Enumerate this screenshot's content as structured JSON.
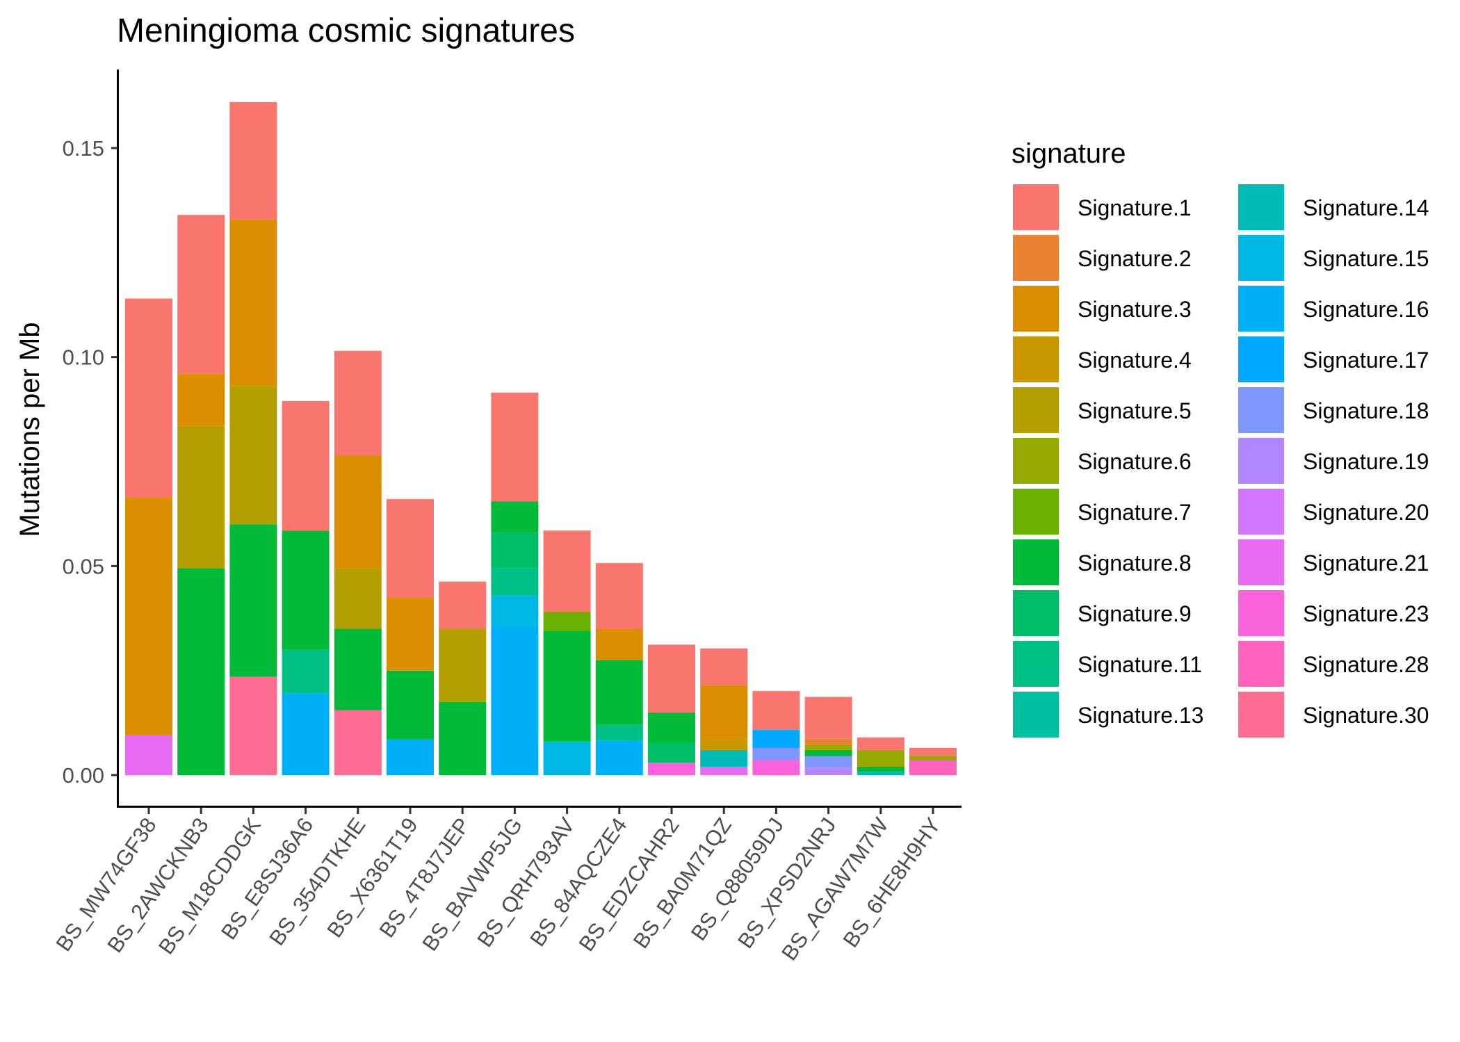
{
  "chart_data": {
    "type": "bar",
    "stacked": true,
    "title": "Meningioma cosmic signatures",
    "xlabel": "",
    "ylabel": "Mutations per Mb",
    "ylim": [
      -0.008,
      0.169
    ],
    "yticks": [
      0.0,
      0.05,
      0.1,
      0.15
    ],
    "ytick_labels": [
      "0.00",
      "0.05",
      "0.10",
      "0.15"
    ],
    "grid": false,
    "legend_position": "right",
    "legend_title": "signature",
    "categories": [
      "BS_MW74GF38",
      "BS_2AWCKNB3",
      "BS_M18CDDGK",
      "BS_E8SJ36A6",
      "BS_354DTKHE",
      "BS_X6361T19",
      "BS_4T8J7JEP",
      "BS_BAVWP5JG",
      "BS_QRH793AV",
      "BS_84AQCZE4",
      "BS_EDZCAHR2",
      "BS_BA0M71QZ",
      "BS_Q88059DJ",
      "BS_XPSD2NRJ",
      "BS_AGAW7M7W",
      "BS_6HE8H9HY"
    ],
    "series": [
      {
        "name": "Signature.1",
        "color": "#F8766D",
        "values": [
          0.0475,
          0.038,
          0.028,
          0.031,
          0.025,
          0.0235,
          0.0113,
          0.026,
          0.0195,
          0.0157,
          0.0162,
          0.0088,
          0.0093,
          0.01,
          0.003,
          0.002
        ]
      },
      {
        "name": "Signature.2",
        "color": "#EA8331",
        "values": [
          0,
          0,
          0,
          0,
          0,
          0,
          0,
          0,
          0,
          0,
          0,
          0,
          0,
          0.0015,
          0,
          0
        ]
      },
      {
        "name": "Signature.3",
        "color": "#DB8E00",
        "values": [
          0.057,
          0.0125,
          0.04,
          0,
          0.027,
          0.0175,
          0,
          0,
          0,
          0.0075,
          0,
          0.013,
          0,
          0,
          0,
          0
        ]
      },
      {
        "name": "Signature.4",
        "color": "#C99800",
        "values": [
          0,
          0,
          0,
          0,
          0,
          0,
          0,
          0,
          0,
          0,
          0,
          0.0025,
          0,
          0,
          0,
          0
        ]
      },
      {
        "name": "Signature.5",
        "color": "#B3A000",
        "values": [
          0,
          0.034,
          0.033,
          0,
          0.0145,
          0,
          0.0175,
          0,
          0,
          0,
          0,
          0,
          0,
          0,
          0,
          0
        ]
      },
      {
        "name": "Signature.6",
        "color": "#96A900",
        "values": [
          0,
          0,
          0,
          0,
          0,
          0,
          0,
          0,
          0,
          0,
          0,
          0,
          0,
          0.0012,
          0.004,
          0.001
        ]
      },
      {
        "name": "Signature.7",
        "color": "#6BB100",
        "values": [
          0,
          0,
          0,
          0,
          0,
          0,
          0,
          0,
          0.0045,
          0,
          0,
          0,
          0,
          0,
          0,
          0
        ]
      },
      {
        "name": "Signature.8",
        "color": "#00BA38",
        "values": [
          0,
          0.0495,
          0.0365,
          0.0285,
          0.0195,
          0.0165,
          0.0175,
          0.0075,
          0.0265,
          0.0155,
          0.0075,
          0,
          0,
          0.0015,
          0.0012,
          0
        ]
      },
      {
        "name": "Signature.9",
        "color": "#00BE67",
        "values": [
          0,
          0,
          0,
          0,
          0,
          0,
          0,
          0.0085,
          0,
          0,
          0.0045,
          0,
          0,
          0,
          0,
          0
        ]
      },
      {
        "name": "Signature.11",
        "color": "#00C086",
        "values": [
          0,
          0,
          0,
          0.0105,
          0,
          0,
          0,
          0.0065,
          0,
          0.0037,
          0,
          0,
          0,
          0,
          0,
          0
        ]
      },
      {
        "name": "Signature.13",
        "color": "#00C0A0",
        "values": [
          0,
          0,
          0,
          0,
          0,
          0,
          0,
          0,
          0,
          0,
          0,
          0,
          0,
          0,
          0,
          0
        ]
      },
      {
        "name": "Signature.14",
        "color": "#00BCB8",
        "values": [
          0,
          0,
          0,
          0,
          0,
          0,
          0,
          0,
          0,
          0,
          0,
          0.004,
          0,
          0,
          0.0008,
          0
        ]
      },
      {
        "name": "Signature.15",
        "color": "#00B8E5",
        "values": [
          0,
          0,
          0,
          0,
          0,
          0,
          0,
          0.0075,
          0.008,
          0,
          0,
          0,
          0,
          0,
          0,
          0
        ]
      },
      {
        "name": "Signature.16",
        "color": "#00B0F6",
        "values": [
          0,
          0,
          0,
          0.0195,
          0,
          0.0085,
          0,
          0.0355,
          0,
          0.0083,
          0,
          0,
          0,
          0,
          0,
          0
        ]
      },
      {
        "name": "Signature.17",
        "color": "#00A9FF",
        "values": [
          0,
          0,
          0,
          0,
          0,
          0,
          0,
          0,
          0,
          0,
          0,
          0,
          0.0043,
          0,
          0,
          0
        ]
      },
      {
        "name": "Signature.18",
        "color": "#7F96FF",
        "values": [
          0,
          0,
          0,
          0,
          0,
          0,
          0,
          0,
          0,
          0,
          0,
          0,
          0.003,
          0.0027,
          0,
          0
        ]
      },
      {
        "name": "Signature.19",
        "color": "#B186FF",
        "values": [
          0,
          0,
          0,
          0,
          0,
          0,
          0,
          0,
          0,
          0,
          0,
          0,
          0,
          0.0018,
          0,
          0
        ]
      },
      {
        "name": "Signature.20",
        "color": "#D376FF",
        "values": [
          0,
          0,
          0,
          0,
          0,
          0,
          0,
          0,
          0,
          0,
          0,
          0,
          0,
          0,
          0,
          0
        ]
      },
      {
        "name": "Signature.21",
        "color": "#E76BF3",
        "values": [
          0.0095,
          0,
          0,
          0,
          0,
          0,
          0,
          0,
          0,
          0,
          0,
          0.002,
          0,
          0,
          0,
          0
        ]
      },
      {
        "name": "Signature.23",
        "color": "#FA62DB",
        "values": [
          0,
          0,
          0,
          0,
          0,
          0,
          0,
          0,
          0,
          0,
          0.003,
          0,
          0.0035,
          0,
          0,
          0
        ]
      },
      {
        "name": "Signature.28",
        "color": "#FF62BC",
        "values": [
          0,
          0,
          0,
          0,
          0,
          0,
          0,
          0,
          0,
          0,
          0,
          0,
          0,
          0,
          0,
          0.0035
        ]
      },
      {
        "name": "Signature.30",
        "color": "#FF6C91",
        "values": [
          0,
          0,
          0.0235,
          0,
          0.0155,
          0,
          0,
          0,
          0,
          0,
          0,
          0,
          0,
          0,
          0,
          0
        ]
      }
    ]
  }
}
